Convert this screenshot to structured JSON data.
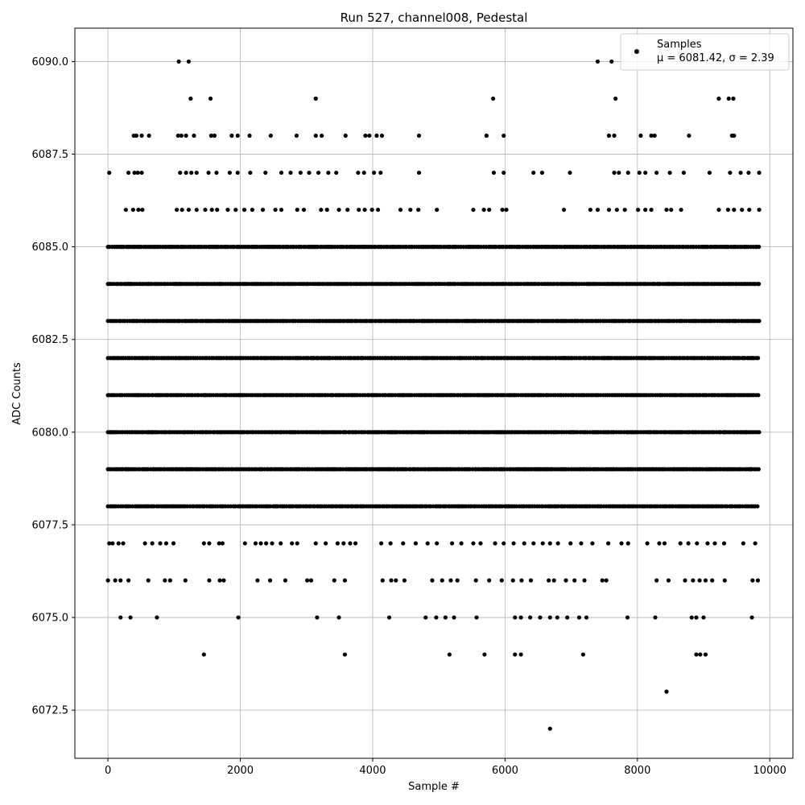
{
  "chart_data": {
    "type": "scatter",
    "title": "Run 527, channel008, Pedestal",
    "xlabel": "Sample #",
    "ylabel": "ADC Counts",
    "xlim": [
      -500,
      10350
    ],
    "ylim": [
      6071.2,
      6090.9
    ],
    "xticks": [
      0,
      2000,
      4000,
      6000,
      8000,
      10000
    ],
    "xtick_labels": [
      "0",
      "2000",
      "4000",
      "6000",
      "8000",
      "10000"
    ],
    "yticks": [
      6072.5,
      6075.0,
      6077.5,
      6080.0,
      6082.5,
      6085.0,
      6087.5,
      6090.0
    ],
    "ytick_labels": [
      "6072.5",
      "6075.0",
      "6077.5",
      "6080.0",
      "6082.5",
      "6085.0",
      "6087.5",
      "6090.0"
    ],
    "grid": true,
    "legend_position": "top-right",
    "legend": {
      "label": "Samples",
      "stats": "μ = 6081.42, σ = 2.39"
    },
    "marker_color": "#000000",
    "series": [
      {
        "name": "Samples",
        "points": [
          [
            1070,
            6090
          ],
          [
            1220,
            6090
          ],
          [
            7400,
            6090
          ],
          [
            7610,
            6090
          ],
          [
            1250,
            6089
          ],
          [
            1550,
            6089
          ],
          [
            3140,
            6089
          ],
          [
            5820,
            6089
          ],
          [
            7670,
            6089
          ],
          [
            9230,
            6089
          ],
          [
            9380,
            6089
          ],
          [
            9450,
            6089
          ],
          [
            390,
            6088
          ],
          [
            430,
            6088
          ],
          [
            510,
            6088
          ],
          [
            620,
            6088
          ],
          [
            1060,
            6088
          ],
          [
            1110,
            6088
          ],
          [
            1180,
            6088
          ],
          [
            1300,
            6088
          ],
          [
            1560,
            6088
          ],
          [
            1610,
            6088
          ],
          [
            1870,
            6088
          ],
          [
            1960,
            6088
          ],
          [
            2140,
            6088
          ],
          [
            2460,
            6088
          ],
          [
            2850,
            6088
          ],
          [
            3140,
            6088
          ],
          [
            3230,
            6088
          ],
          [
            3590,
            6088
          ],
          [
            3890,
            6088
          ],
          [
            3950,
            6088
          ],
          [
            4060,
            6088
          ],
          [
            4140,
            6088
          ],
          [
            4700,
            6088
          ],
          [
            5720,
            6088
          ],
          [
            5980,
            6088
          ],
          [
            7570,
            6088
          ],
          [
            7650,
            6088
          ],
          [
            8050,
            6088
          ],
          [
            8210,
            6088
          ],
          [
            8260,
            6088
          ],
          [
            8780,
            6088
          ],
          [
            9430,
            6088
          ],
          [
            9460,
            6088
          ],
          [
            20,
            6087
          ],
          [
            310,
            6087
          ],
          [
            400,
            6087
          ],
          [
            450,
            6087
          ],
          [
            510,
            6087
          ],
          [
            1090,
            6087
          ],
          [
            1180,
            6087
          ],
          [
            1260,
            6087
          ],
          [
            1340,
            6087
          ],
          [
            1520,
            6087
          ],
          [
            1640,
            6087
          ],
          [
            1840,
            6087
          ],
          [
            1960,
            6087
          ],
          [
            2150,
            6087
          ],
          [
            2380,
            6087
          ],
          [
            2620,
            6087
          ],
          [
            2760,
            6087
          ],
          [
            2910,
            6087
          ],
          [
            3040,
            6087
          ],
          [
            3180,
            6087
          ],
          [
            3330,
            6087
          ],
          [
            3450,
            6087
          ],
          [
            3780,
            6087
          ],
          [
            3870,
            6087
          ],
          [
            4020,
            6087
          ],
          [
            4120,
            6087
          ],
          [
            4700,
            6087
          ],
          [
            5830,
            6087
          ],
          [
            5980,
            6087
          ],
          [
            6430,
            6087
          ],
          [
            6560,
            6087
          ],
          [
            6980,
            6087
          ],
          [
            7650,
            6087
          ],
          [
            7720,
            6087
          ],
          [
            7860,
            6087
          ],
          [
            8030,
            6087
          ],
          [
            8120,
            6087
          ],
          [
            8290,
            6087
          ],
          [
            8490,
            6087
          ],
          [
            8700,
            6087
          ],
          [
            9090,
            6087
          ],
          [
            9400,
            6087
          ],
          [
            9560,
            6087
          ],
          [
            9680,
            6087
          ],
          [
            9840,
            6087
          ],
          [
            270,
            6086
          ],
          [
            380,
            6086
          ],
          [
            460,
            6086
          ],
          [
            520,
            6086
          ],
          [
            1040,
            6086
          ],
          [
            1120,
            6086
          ],
          [
            1220,
            6086
          ],
          [
            1340,
            6086
          ],
          [
            1470,
            6086
          ],
          [
            1570,
            6086
          ],
          [
            1650,
            6086
          ],
          [
            1810,
            6086
          ],
          [
            1930,
            6086
          ],
          [
            2060,
            6086
          ],
          [
            2180,
            6086
          ],
          [
            2340,
            6086
          ],
          [
            2530,
            6086
          ],
          [
            2620,
            6086
          ],
          [
            2860,
            6086
          ],
          [
            2960,
            6086
          ],
          [
            3220,
            6086
          ],
          [
            3310,
            6086
          ],
          [
            3490,
            6086
          ],
          [
            3620,
            6086
          ],
          [
            3790,
            6086
          ],
          [
            3880,
            6086
          ],
          [
            3990,
            6086
          ],
          [
            4080,
            6086
          ],
          [
            4420,
            6086
          ],
          [
            4570,
            6086
          ],
          [
            4690,
            6086
          ],
          [
            4970,
            6086
          ],
          [
            5520,
            6086
          ],
          [
            5680,
            6086
          ],
          [
            5760,
            6086
          ],
          [
            5960,
            6086
          ],
          [
            6020,
            6086
          ],
          [
            6890,
            6086
          ],
          [
            7290,
            6086
          ],
          [
            7400,
            6086
          ],
          [
            7570,
            6086
          ],
          [
            7690,
            6086
          ],
          [
            7810,
            6086
          ],
          [
            8010,
            6086
          ],
          [
            8120,
            6086
          ],
          [
            8210,
            6086
          ],
          [
            8440,
            6086
          ],
          [
            8510,
            6086
          ],
          [
            8660,
            6086
          ],
          [
            9230,
            6086
          ],
          [
            9370,
            6086
          ],
          [
            9460,
            6086
          ],
          [
            9580,
            6086
          ],
          [
            9690,
            6086
          ],
          [
            9840,
            6086
          ],
          [
            20,
            6077
          ],
          [
            70,
            6077
          ],
          [
            160,
            6077
          ],
          [
            230,
            6077
          ],
          [
            560,
            6077
          ],
          [
            670,
            6077
          ],
          [
            790,
            6077
          ],
          [
            880,
            6077
          ],
          [
            990,
            6077
          ],
          [
            1450,
            6077
          ],
          [
            1530,
            6077
          ],
          [
            1680,
            6077
          ],
          [
            1730,
            6077
          ],
          [
            2070,
            6077
          ],
          [
            2230,
            6077
          ],
          [
            2310,
            6077
          ],
          [
            2390,
            6077
          ],
          [
            2480,
            6077
          ],
          [
            2610,
            6077
          ],
          [
            2780,
            6077
          ],
          [
            2860,
            6077
          ],
          [
            3140,
            6077
          ],
          [
            3290,
            6077
          ],
          [
            3470,
            6077
          ],
          [
            3560,
            6077
          ],
          [
            3660,
            6077
          ],
          [
            3740,
            6077
          ],
          [
            4130,
            6077
          ],
          [
            4270,
            6077
          ],
          [
            4460,
            6077
          ],
          [
            4650,
            6077
          ],
          [
            4830,
            6077
          ],
          [
            4970,
            6077
          ],
          [
            5200,
            6077
          ],
          [
            5340,
            6077
          ],
          [
            5520,
            6077
          ],
          [
            5630,
            6077
          ],
          [
            5850,
            6077
          ],
          [
            5980,
            6077
          ],
          [
            6130,
            6077
          ],
          [
            6290,
            6077
          ],
          [
            6430,
            6077
          ],
          [
            6570,
            6077
          ],
          [
            6680,
            6077
          ],
          [
            6800,
            6077
          ],
          [
            6990,
            6077
          ],
          [
            7150,
            6077
          ],
          [
            7320,
            6077
          ],
          [
            7560,
            6077
          ],
          [
            7760,
            6077
          ],
          [
            7860,
            6077
          ],
          [
            8150,
            6077
          ],
          [
            8330,
            6077
          ],
          [
            8410,
            6077
          ],
          [
            8650,
            6077
          ],
          [
            8770,
            6077
          ],
          [
            8900,
            6077
          ],
          [
            9060,
            6077
          ],
          [
            9170,
            6077
          ],
          [
            9310,
            6077
          ],
          [
            9600,
            6077
          ],
          [
            9780,
            6077
          ],
          [
            0,
            6076
          ],
          [
            110,
            6076
          ],
          [
            190,
            6076
          ],
          [
            310,
            6076
          ],
          [
            610,
            6076
          ],
          [
            860,
            6076
          ],
          [
            940,
            6076
          ],
          [
            1170,
            6076
          ],
          [
            1530,
            6076
          ],
          [
            1690,
            6076
          ],
          [
            1750,
            6076
          ],
          [
            2260,
            6076
          ],
          [
            2450,
            6076
          ],
          [
            2680,
            6076
          ],
          [
            3010,
            6076
          ],
          [
            3070,
            6076
          ],
          [
            3420,
            6076
          ],
          [
            3580,
            6076
          ],
          [
            4150,
            6076
          ],
          [
            4280,
            6076
          ],
          [
            4350,
            6076
          ],
          [
            4480,
            6076
          ],
          [
            4900,
            6076
          ],
          [
            5050,
            6076
          ],
          [
            5180,
            6076
          ],
          [
            5280,
            6076
          ],
          [
            5560,
            6076
          ],
          [
            5760,
            6076
          ],
          [
            5950,
            6076
          ],
          [
            6120,
            6076
          ],
          [
            6250,
            6076
          ],
          [
            6390,
            6076
          ],
          [
            6660,
            6076
          ],
          [
            6740,
            6076
          ],
          [
            6920,
            6076
          ],
          [
            7050,
            6076
          ],
          [
            7200,
            6076
          ],
          [
            7470,
            6076
          ],
          [
            7530,
            6076
          ],
          [
            8290,
            6076
          ],
          [
            8470,
            6076
          ],
          [
            8720,
            6076
          ],
          [
            8840,
            6076
          ],
          [
            8940,
            6076
          ],
          [
            9030,
            6076
          ],
          [
            9130,
            6076
          ],
          [
            9320,
            6076
          ],
          [
            9740,
            6076
          ],
          [
            9820,
            6076
          ],
          [
            190,
            6075
          ],
          [
            340,
            6075
          ],
          [
            740,
            6075
          ],
          [
            1970,
            6075
          ],
          [
            3160,
            6075
          ],
          [
            3490,
            6075
          ],
          [
            4250,
            6075
          ],
          [
            4800,
            6075
          ],
          [
            4960,
            6075
          ],
          [
            5100,
            6075
          ],
          [
            5230,
            6075
          ],
          [
            5570,
            6075
          ],
          [
            6150,
            6075
          ],
          [
            6240,
            6075
          ],
          [
            6380,
            6075
          ],
          [
            6530,
            6075
          ],
          [
            6680,
            6075
          ],
          [
            6790,
            6075
          ],
          [
            6940,
            6075
          ],
          [
            7120,
            6075
          ],
          [
            7230,
            6075
          ],
          [
            7850,
            6075
          ],
          [
            8270,
            6075
          ],
          [
            8820,
            6075
          ],
          [
            8890,
            6075
          ],
          [
            9000,
            6075
          ],
          [
            9730,
            6075
          ],
          [
            1450,
            6074
          ],
          [
            3580,
            6074
          ],
          [
            5160,
            6074
          ],
          [
            5690,
            6074
          ],
          [
            6150,
            6074
          ],
          [
            6240,
            6074
          ],
          [
            7180,
            6074
          ],
          [
            8890,
            6074
          ],
          [
            8950,
            6074
          ],
          [
            9030,
            6074
          ],
          [
            8440,
            6073
          ],
          [
            6680,
            6072
          ]
        ]
      }
    ],
    "dense_levels": [
      6078,
      6079,
      6080,
      6081,
      6082,
      6083,
      6084,
      6085
    ],
    "dense_x_range": [
      0,
      9840
    ]
  }
}
